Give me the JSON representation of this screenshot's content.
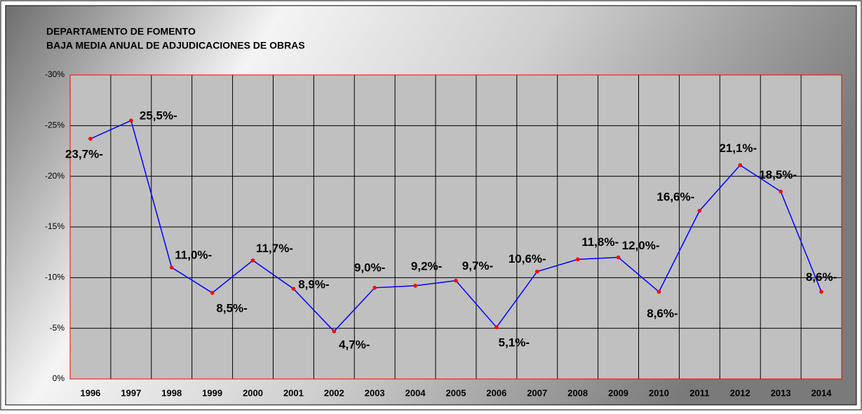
{
  "chart_data": {
    "type": "line",
    "title": "DEPARTAMENTO DE FOMENTO",
    "subtitle": "BAJA MEDIA ANUAL DE ADJUDICACIONES DE OBRAS",
    "categories": [
      "1996",
      "1997",
      "1998",
      "1999",
      "2000",
      "2001",
      "2002",
      "2003",
      "2004",
      "2005",
      "2006",
      "2007",
      "2008",
      "2009",
      "2010",
      "2011",
      "2012",
      "2013",
      "2014"
    ],
    "series": [
      {
        "color": "#0000ff",
        "marker_color": "#ff0000",
        "values": [
          -23.7,
          -25.5,
          -11.0,
          -8.5,
          -11.7,
          -8.9,
          -4.7,
          -9.0,
          -9.2,
          -9.7,
          -5.1,
          -10.6,
          -11.8,
          -12.0,
          -8.6,
          -16.6,
          -21.1,
          -18.5,
          -8.6
        ],
        "value_labels": [
          "23,7%-",
          "25,5%-",
          "11,0%-",
          "8,5%-",
          "11,7%-",
          "8,9%-",
          "4,7%-",
          "9,0%-",
          "9,2%-",
          "9,7%-",
          "5,1%-",
          "10,6%-",
          "11,8%-",
          "12,0%-",
          "8,6%-",
          "16,6%-",
          "21,1%-",
          "18,5%-",
          "8,6%-"
        ]
      }
    ],
    "ylim": [
      0,
      -30
    ],
    "yticks": [
      {
        "value": -30,
        "label": "-30%"
      },
      {
        "value": -25,
        "label": "-25%"
      },
      {
        "value": -20,
        "label": "-20%"
      },
      {
        "value": -15,
        "label": "-15%"
      },
      {
        "value": -10,
        "label": "-10%"
      },
      {
        "value": -5,
        "label": "-5%"
      },
      {
        "value": 0,
        "label": "0%"
      }
    ],
    "grid": true
  }
}
